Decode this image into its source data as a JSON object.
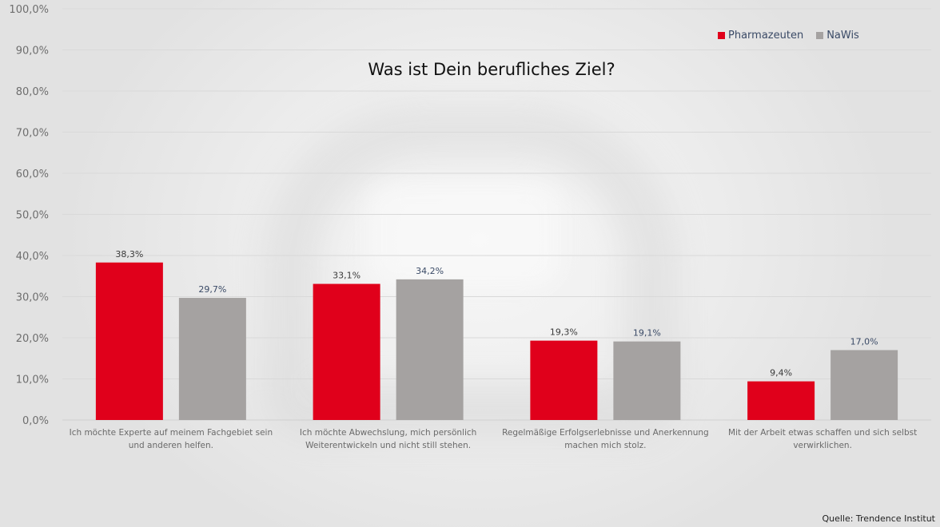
{
  "chart_data": {
    "type": "bar",
    "title": "Was ist Dein berufliches Ziel?",
    "xlabel": "",
    "ylabel": "",
    "ylim": [
      0,
      100
    ],
    "yticks": [
      "0,0%",
      "10,0%",
      "20,0%",
      "30,0%",
      "40,0%",
      "50,0%",
      "60,0%",
      "70,0%",
      "80,0%",
      "90,0%",
      "100,0%"
    ],
    "grid": true,
    "legend_position": "top-right",
    "categories": [
      [
        "Ich möchte Experte auf meinem Fachgebiet sein",
        "und anderen helfen."
      ],
      [
        "Ich möchte Abwechslung, mich persönlich",
        "Weiterentwickeln und nicht still stehen."
      ],
      [
        "Regelmäßige Erfolgserlebnisse und Anerkennung",
        "machen mich stolz."
      ],
      [
        "Mit der Arbeit etwas schaffen und sich selbst",
        "verwirklichen."
      ]
    ],
    "series": [
      {
        "name": "Pharmazeuten",
        "color": "#e0001b",
        "label_color": "#3a3a3a",
        "values": [
          38.3,
          33.1,
          19.3,
          9.4
        ],
        "labels": [
          "38,3%",
          "33,1%",
          "19,3%",
          "9,4%"
        ]
      },
      {
        "name": "NaWis",
        "color": "#a5a2a1",
        "label_color": "#3a4a66",
        "values": [
          29.7,
          34.2,
          19.1,
          17.0
        ],
        "labels": [
          "29,7%",
          "34,2%",
          "19,1%",
          "17,0%"
        ]
      }
    ]
  },
  "source": "Quelle: Trendence Institut"
}
